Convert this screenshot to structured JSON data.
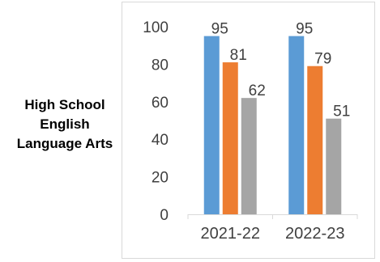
{
  "side_label": {
    "line1": "High School",
    "line2": "English",
    "line3": "Language Arts"
  },
  "chart_data": {
    "type": "bar",
    "categories": [
      "2021-22",
      "2022-23"
    ],
    "series": [
      {
        "values": [
          95,
          95
        ],
        "color": "#5b9bd5"
      },
      {
        "values": [
          81,
          79
        ],
        "color": "#ed7d31"
      },
      {
        "values": [
          62,
          51
        ],
        "color": "#a5a5a5"
      }
    ],
    "ylim": [
      0,
      100
    ],
    "yticks": [
      0,
      20,
      40,
      60,
      80,
      100
    ],
    "grid": false,
    "legend": "none",
    "data_labels": true,
    "title": "",
    "xlabel": "",
    "ylabel": ""
  }
}
